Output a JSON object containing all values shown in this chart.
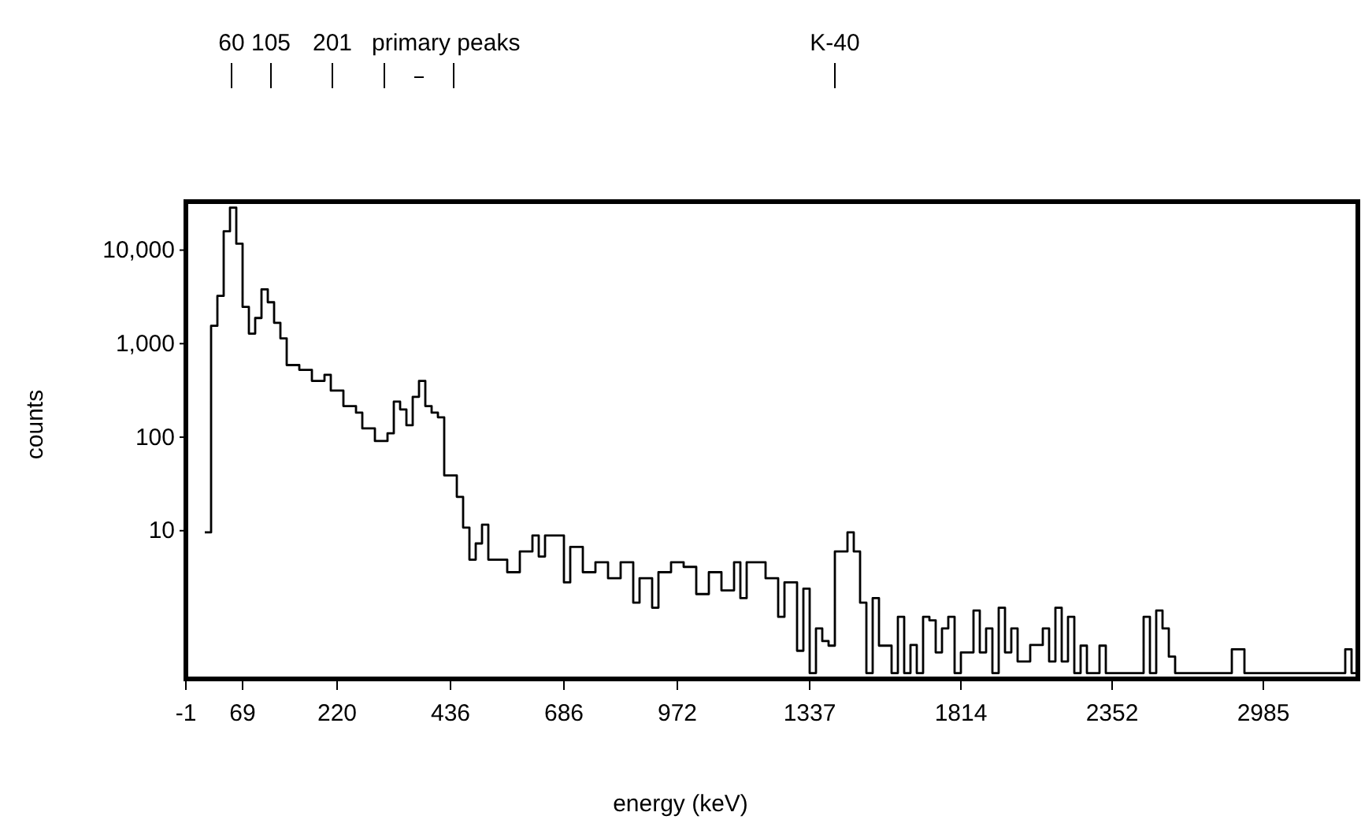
{
  "chart_data": {
    "type": "step",
    "xlabel": "energy (keV)",
    "ylabel": "counts",
    "log": "y",
    "grid": false,
    "categories": [
      "-1",
      null,
      null,
      null,
      null,
      null,
      null,
      null,
      null,
      "69",
      null,
      null,
      null,
      null,
      null,
      null,
      null,
      null,
      null,
      null,
      null,
      null,
      null,
      null,
      "220",
      null,
      null,
      null,
      null,
      null,
      null,
      null,
      null,
      null,
      null,
      null,
      null,
      null,
      null,
      null,
      null,
      null,
      "436",
      null,
      null,
      null,
      null,
      null,
      null,
      null,
      null,
      null,
      null,
      null,
      null,
      null,
      null,
      null,
      null,
      null,
      "686",
      null,
      null,
      null,
      null,
      null,
      null,
      null,
      null,
      null,
      null,
      null,
      null,
      null,
      null,
      null,
      null,
      null,
      "972",
      null,
      null,
      null,
      null,
      null,
      null,
      null,
      null,
      null,
      null,
      null,
      null,
      null,
      null,
      null,
      null,
      null,
      null,
      null,
      null,
      "1337",
      null,
      null,
      null,
      null,
      null,
      null,
      null,
      null,
      null,
      null,
      null,
      null,
      null,
      null,
      null,
      null,
      null,
      null,
      null,
      null,
      null,
      null,
      null,
      "1814",
      null,
      null,
      null,
      null,
      null,
      null,
      null,
      null,
      null,
      null,
      null,
      null,
      null,
      null,
      null,
      null,
      null,
      null,
      null,
      null,
      null,
      null,
      null,
      "2352",
      null,
      null,
      null,
      null,
      null,
      null,
      null,
      null,
      null,
      null,
      null,
      null,
      null,
      null,
      null,
      null,
      null,
      null,
      null,
      null,
      null,
      null,
      null,
      "2985",
      null,
      null,
      null,
      null,
      null,
      null,
      null,
      null,
      null,
      null,
      null,
      null,
      null,
      null,
      null
    ],
    "ylim": [
      0.26,
      33000
    ],
    "yticks": [
      {
        "value": 10,
        "label": "10"
      },
      {
        "value": 100,
        "label": "100"
      },
      {
        "value": 1000,
        "label": "1,000"
      },
      {
        "value": 10000,
        "label": "10,000"
      }
    ],
    "annotations": [
      "60",
      "105",
      "201",
      "primary peaks",
      "K-40"
    ],
    "series": [
      {
        "color": "#000000",
        "values": [
          null,
          null,
          null,
          9.6,
          1550,
          3240,
          15900,
          28500,
          11700,
          2470,
          1280,
          1880,
          3800,
          2770,
          1670,
          1140,
          590,
          590,
          525,
          525,
          400,
          400,
          465,
          315,
          315,
          215,
          215,
          183,
          124,
          124,
          91,
          91,
          110,
          240,
          198,
          134,
          270,
          400,
          215,
          183,
          163,
          39,
          39,
          23,
          10.8,
          4.9,
          7.3,
          11.6,
          4.9,
          4.9,
          4.9,
          3.6,
          3.6,
          6.0,
          6.0,
          8.9,
          5.3,
          8.9,
          8.9,
          8.9,
          2.8,
          6.7,
          6.7,
          3.6,
          3.6,
          4.6,
          4.6,
          3.1,
          3.1,
          4.6,
          4.6,
          1.7,
          3.1,
          3.1,
          1.5,
          3.6,
          3.6,
          4.6,
          4.6,
          4.1,
          4.1,
          2.1,
          2.1,
          3.6,
          3.6,
          2.3,
          2.3,
          4.6,
          1.9,
          4.6,
          4.6,
          4.6,
          3.1,
          3.1,
          1.2,
          2.8,
          2.8,
          0.52,
          2.4,
          0.3,
          0.9,
          0.66,
          0.59,
          6.0,
          6.0,
          9.6,
          6.0,
          1.7,
          0.3,
          1.9,
          0.59,
          0.59,
          0.3,
          1.2,
          0.3,
          0.6,
          0.3,
          1.2,
          1.1,
          0.5,
          0.9,
          1.2,
          0.3,
          0.5,
          0.5,
          1.4,
          0.5,
          0.9,
          0.3,
          1.5,
          0.5,
          0.9,
          0.4,
          0.4,
          0.6,
          0.6,
          0.9,
          0.4,
          1.5,
          0.4,
          1.2,
          0.3,
          0.59,
          0.3,
          0.3,
          0.59,
          0.3,
          0.3,
          0.3,
          0.3,
          0.3,
          0.3,
          1.2,
          0.3,
          1.4,
          0.9,
          0.45,
          0.3,
          0.3,
          0.3,
          0.3,
          0.3,
          0.3,
          0.3,
          0.3,
          0.3,
          0.54,
          0.54,
          0.3,
          0.3,
          0.3,
          0.3,
          0.3,
          0.3,
          0.3,
          0.3,
          0.3,
          0.3,
          0.3,
          0.3,
          0.3,
          0.3,
          0.3,
          0.3,
          0.54,
          0.3,
          0.3
        ]
      }
    ]
  }
}
